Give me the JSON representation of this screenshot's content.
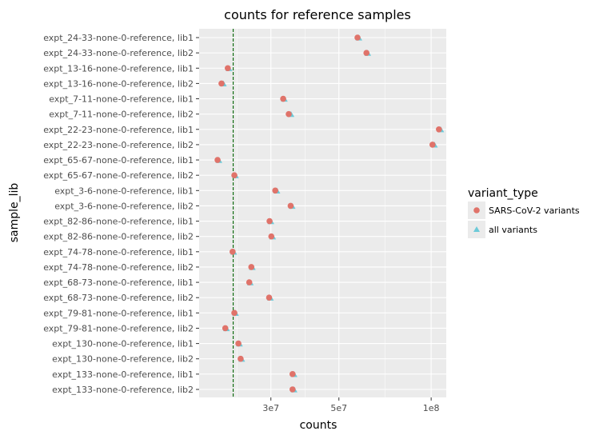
{
  "chart_data": {
    "type": "scatter",
    "title": "counts for reference samples",
    "xlabel": "counts",
    "ylabel": "sample_lib",
    "x_scale": "log",
    "xlim": [
      17500000,
      112000000
    ],
    "x_ticks": [
      {
        "value": 30000000,
        "label": "3e7"
      },
      {
        "value": 50000000,
        "label": "5e7"
      },
      {
        "value": 100000000,
        "label": "1e8"
      }
    ],
    "threshold_line": {
      "value": 22600000,
      "color": "#006400",
      "style": "dashed"
    },
    "categories": [
      "expt_24-33-none-0-reference, lib1",
      "expt_24-33-none-0-reference, lib2",
      "expt_13-16-none-0-reference, lib1",
      "expt_13-16-none-0-reference, lib2",
      "expt_7-11-none-0-reference, lib1",
      "expt_7-11-none-0-reference, lib2",
      "expt_22-23-none-0-reference, lib1",
      "expt_22-23-none-0-reference, lib2",
      "expt_65-67-none-0-reference, lib1",
      "expt_65-67-none-0-reference, lib2",
      "expt_3-6-none-0-reference, lib1",
      "expt_3-6-none-0-reference, lib2",
      "expt_82-86-none-0-reference, lib1",
      "expt_82-86-none-0-reference, lib2",
      "expt_74-78-none-0-reference, lib1",
      "expt_74-78-none-0-reference, lib2",
      "expt_68-73-none-0-reference, lib1",
      "expt_68-73-none-0-reference, lib2",
      "expt_79-81-none-0-reference, lib1",
      "expt_79-81-none-0-reference, lib2",
      "expt_130-none-0-reference, lib1",
      "expt_130-none-0-reference, lib2",
      "expt_133-none-0-reference, lib1",
      "expt_133-none-0-reference, lib2"
    ],
    "legend": {
      "title": "variant_type",
      "position": "right"
    },
    "series": [
      {
        "name": "SARS-CoV-2 variants",
        "marker": "circle",
        "color": "#E0736A",
        "values": [
          57500000,
          61500000,
          21700000,
          20700000,
          32900000,
          34300000,
          106000000,
          101000000,
          20100000,
          22800000,
          31000000,
          34800000,
          29700000,
          30100000,
          22500000,
          25900000,
          25500000,
          29600000,
          22800000,
          21300000,
          23500000,
          23900000,
          35300000,
          35300000
        ]
      },
      {
        "name": "all variants",
        "marker": "triangle",
        "color": "#6CCAD8",
        "values": [
          58100000,
          62100000,
          21900000,
          21000000,
          33200000,
          34900000,
          107500000,
          102500000,
          20300000,
          23000000,
          31400000,
          35200000,
          30000000,
          30400000,
          22700000,
          26100000,
          25700000,
          29900000,
          23000000,
          21500000,
          23700000,
          24100000,
          35700000,
          35700000
        ]
      }
    ],
    "grid": true,
    "panel_background": "#EBEBEB"
  }
}
